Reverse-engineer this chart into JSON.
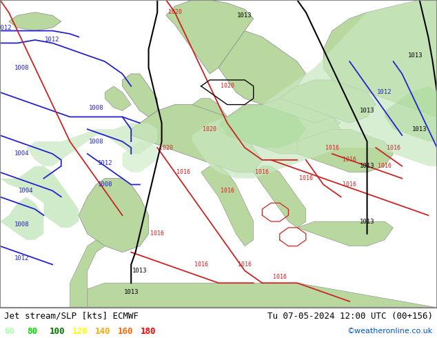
{
  "title_left": "Jet stream/SLP [kts] ECMWF",
  "title_right": "Tu 07-05-2024 12:00 UTC (00+156)",
  "credit": "©weatheronline.co.uk",
  "legend_values": [
    60,
    80,
    100,
    120,
    140,
    160,
    180
  ],
  "legend_colors": [
    "#aaffaa",
    "#00dd00",
    "#007700",
    "#ffff00",
    "#ffaa00",
    "#ff6600",
    "#ff0000"
  ],
  "ocean_color": "#d8d8e0",
  "land_color": "#b8d8a0",
  "jet_green_light": "#c8e8c0",
  "jet_green_medium": "#a8d898",
  "bottom_bar_color": "#ffffff",
  "text_color": "#000000",
  "isobar_blue": "#2222cc",
  "isobar_red": "#cc2222",
  "isobar_black": "#000000",
  "title_fontsize": 9,
  "legend_fontsize": 9,
  "figsize": [
    6.34,
    4.9
  ],
  "dpi": 100
}
